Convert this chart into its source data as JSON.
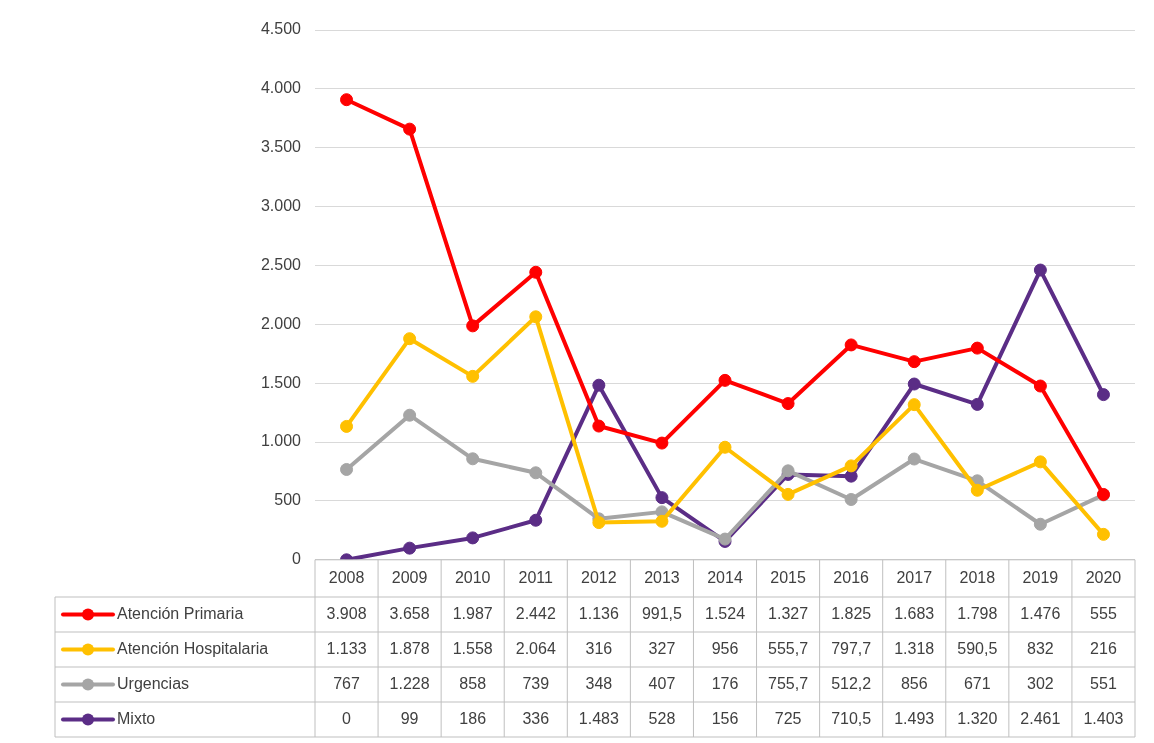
{
  "chart_data": {
    "type": "line",
    "categories": [
      "2008",
      "2009",
      "2010",
      "2011",
      "2012",
      "2013",
      "2014",
      "2015",
      "2016",
      "2017",
      "2018",
      "2019",
      "2020"
    ],
    "series": [
      {
        "name": "Atención Primaria",
        "color": "#ff0000",
        "values": [
          3908,
          3658,
          1987,
          2442,
          1136,
          991.5,
          1524,
          1327,
          1825,
          1683,
          1798,
          1476,
          555
        ],
        "value_labels": [
          "3.908",
          "3.658",
          "1.987",
          "2.442",
          "1.136",
          "991,5",
          "1.524",
          "1.327",
          "1.825",
          "1.683",
          "1.798",
          "1.476",
          "555"
        ]
      },
      {
        "name": "Atención Hospitalaria",
        "color": "#ffc000",
        "values": [
          1133,
          1878,
          1558,
          2064,
          316,
          327,
          956,
          555.7,
          797.7,
          1318,
          590.5,
          832,
          216
        ],
        "value_labels": [
          "1.133",
          "1.878",
          "1.558",
          "2.064",
          "316",
          "327",
          "956",
          "555,7",
          "797,7",
          "1.318",
          "590,5",
          "832",
          "216"
        ]
      },
      {
        "name": "Urgencias",
        "color": "#a5a5a5",
        "values": [
          767,
          1228,
          858,
          739,
          348,
          407,
          176,
          755.7,
          512.2,
          856,
          671,
          302,
          551
        ],
        "value_labels": [
          "767",
          "1.228",
          "858",
          "739",
          "348",
          "407",
          "176",
          "755,7",
          "512,2",
          "856",
          "671",
          "302",
          "551"
        ]
      },
      {
        "name": "Mixto",
        "color": "#5b2d86",
        "values": [
          0,
          99,
          186,
          336,
          1483,
          528,
          156,
          725,
          710.5,
          1493,
          1320,
          2461,
          1403
        ],
        "value_labels": [
          "0",
          "99",
          "186",
          "336",
          "1.483",
          "528",
          "156",
          "725",
          "710,5",
          "1.493",
          "1.320",
          "2.461",
          "1.403"
        ]
      }
    ],
    "ylim": [
      0,
      4500
    ],
    "yticks": [
      0,
      {
        "value": 500,
        "label": "500"
      },
      {
        "value": 1000,
        "label": "1.000"
      },
      {
        "value": 1500,
        "label": "1.500"
      },
      {
        "value": 2000,
        "label": "2.000"
      },
      {
        "value": 2500,
        "label": "2.500"
      },
      {
        "value": 3000,
        "label": "3.000"
      },
      {
        "value": 3500,
        "label": "3.500"
      },
      {
        "value": 4000,
        "label": "4.000"
      },
      {
        "value": 4500,
        "label": "4.500"
      }
    ],
    "grid": "y",
    "legend": "bottom",
    "marker": "circle",
    "line_style": "solid"
  }
}
